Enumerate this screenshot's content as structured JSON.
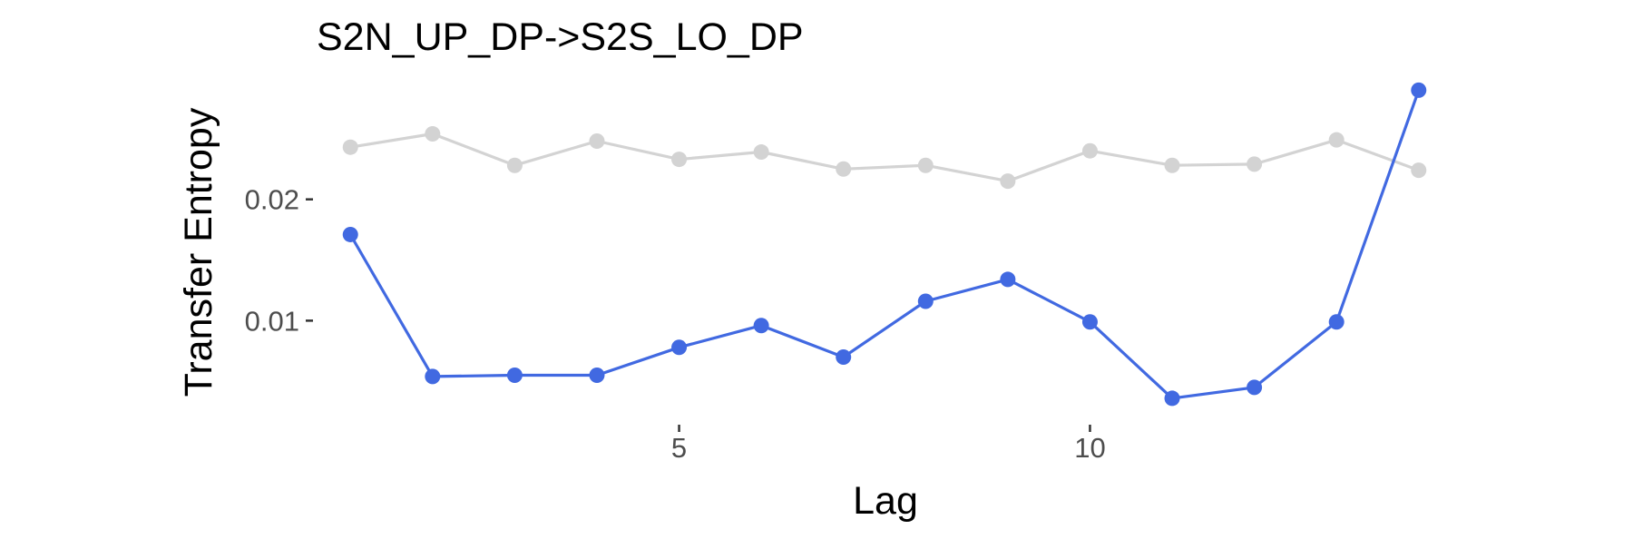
{
  "chart_data": {
    "type": "line",
    "title": "S2N_UP_DP->S2S_LO_DP",
    "xlabel": "Lag",
    "ylabel": "Transfer Entropy",
    "x": [
      1,
      2,
      3,
      4,
      5,
      6,
      7,
      8,
      9,
      10,
      11,
      12,
      13,
      14
    ],
    "xlim": [
      0.6,
      14.4
    ],
    "ylim": [
      0.0018,
      0.0297
    ],
    "x_ticks": [
      5,
      10
    ],
    "x_tick_labels": [
      "5",
      "10"
    ],
    "y_ticks": [
      0.01,
      0.02
    ],
    "y_tick_labels": [
      "0.01",
      "0.02"
    ],
    "grid": false,
    "legend": "none",
    "series": [
      {
        "color": "#d3d3d3",
        "values": [
          0.0243,
          0.0254,
          0.0228,
          0.0248,
          0.0233,
          0.0239,
          0.0225,
          0.0228,
          0.0215,
          0.024,
          0.0228,
          0.0229,
          0.0249,
          0.0224
        ]
      },
      {
        "color": "#4169e1",
        "values": [
          0.0171,
          0.0054,
          0.0055,
          0.0055,
          0.0078,
          0.0096,
          0.007,
          0.0116,
          0.0134,
          0.0099,
          0.0036,
          0.0045,
          0.0099,
          0.029
        ]
      }
    ]
  }
}
